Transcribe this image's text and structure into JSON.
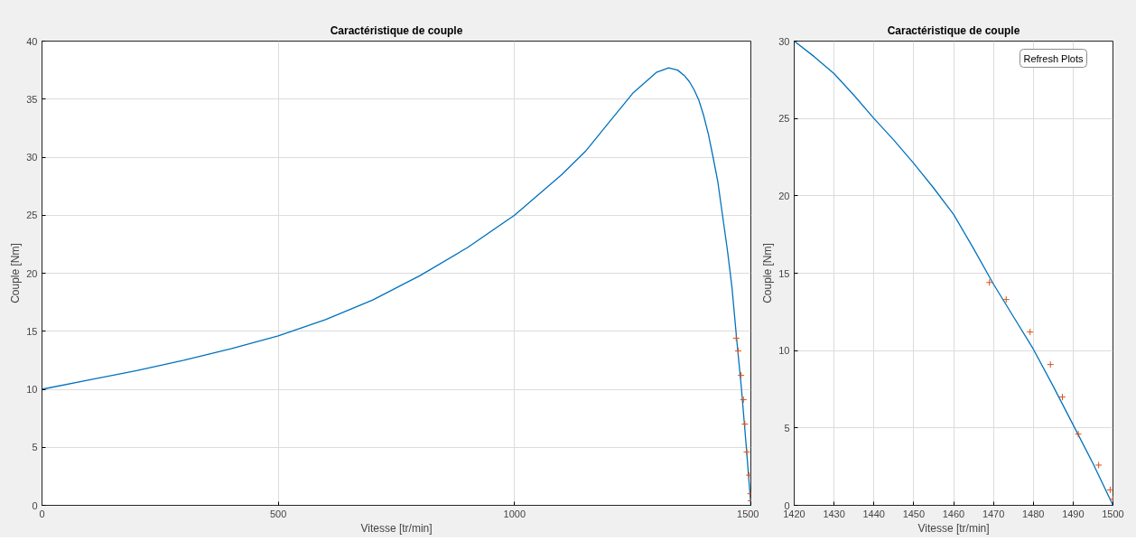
{
  "chart_data": [
    {
      "type": "line",
      "title": "Caractéristique de couple",
      "xlabel": "Vitesse [tr/min]",
      "ylabel": "Couple [Nm]",
      "xlim": [
        0,
        1500
      ],
      "ylim": [
        0,
        40
      ],
      "xticks": [
        0,
        500,
        1000,
        1500
      ],
      "yticks": [
        0,
        5,
        10,
        15,
        20,
        25,
        30,
        35,
        40
      ],
      "grid": true,
      "series": [
        {
          "color": "#0072bd",
          "marker": "none",
          "line_style": "solid",
          "x": [
            0,
            100,
            200,
            300,
            400,
            500,
            600,
            700,
            800,
            900,
            1000,
            1100,
            1150,
            1200,
            1250,
            1300,
            1326,
            1345,
            1360,
            1370,
            1380,
            1390,
            1400,
            1410,
            1420,
            1430,
            1440,
            1450,
            1460,
            1470,
            1480,
            1490,
            1500
          ],
          "values": [
            10.0,
            10.8,
            11.6,
            12.5,
            13.5,
            14.6,
            16.0,
            17.7,
            19.8,
            22.2,
            25.0,
            28.5,
            30.5,
            33.0,
            35.5,
            37.3,
            37.7,
            37.5,
            37.0,
            36.5,
            35.8,
            34.9,
            33.6,
            32.0,
            30.0,
            27.9,
            25.0,
            22.1,
            18.8,
            14.3,
            10.1,
            5.2,
            0
          ]
        },
        {
          "type": "scatter",
          "color": "#d95319",
          "marker": "cross",
          "x": [
            1469,
            1473.2,
            1479.2,
            1484.3,
            1487.3,
            1491.3,
            1496.4,
            1499.3,
            1500
          ],
          "values": [
            14.4,
            13.3,
            11.2,
            9.1,
            7.0,
            4.6,
            2.6,
            1.0,
            0.4
          ]
        }
      ]
    },
    {
      "type": "line",
      "title": "Caractéristique de couple",
      "xlabel": "Vitesse [tr/min]",
      "ylabel": "Couple [Nm]",
      "xlim": [
        1420,
        1500
      ],
      "ylim": [
        0,
        30
      ],
      "xticks": [
        1420,
        1430,
        1440,
        1450,
        1460,
        1470,
        1480,
        1490,
        1500
      ],
      "yticks": [
        0,
        5,
        10,
        15,
        20,
        25,
        30
      ],
      "grid": true,
      "annotations": [
        "Refresh Plots"
      ],
      "series": [
        {
          "color": "#0072bd",
          "marker": "none",
          "line_style": "solid",
          "x": [
            1420,
            1425,
            1430,
            1435,
            1440,
            1445,
            1450,
            1455,
            1460,
            1465,
            1470,
            1475,
            1480,
            1485,
            1490,
            1495,
            1500
          ],
          "values": [
            30.0,
            29.0,
            27.9,
            26.5,
            25.0,
            23.6,
            22.1,
            20.5,
            18.8,
            16.6,
            14.3,
            12.2,
            10.1,
            7.7,
            5.2,
            2.7,
            0
          ]
        },
        {
          "type": "scatter",
          "color": "#d95319",
          "marker": "cross",
          "x": [
            1469,
            1473.2,
            1479.2,
            1484.3,
            1487.3,
            1491.3,
            1496.4,
            1499.3,
            1500
          ],
          "values": [
            14.4,
            13.3,
            11.2,
            9.1,
            7.0,
            4.6,
            2.6,
            1.0,
            0.4
          ]
        }
      ]
    }
  ]
}
